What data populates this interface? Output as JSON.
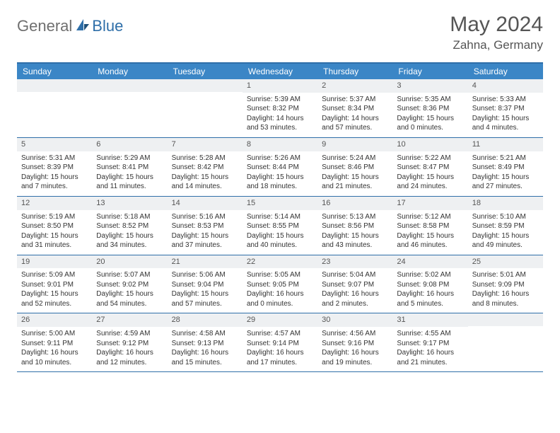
{
  "logo": {
    "part1": "General",
    "part2": "Blue"
  },
  "title": "May 2024",
  "location": "Zahna, Germany",
  "colors": {
    "header_bg": "#3b86c6",
    "header_border": "#2f6fa9",
    "daynum_bg": "#eef0f2",
    "text": "#333333",
    "logo_gray": "#6f6f6f",
    "logo_blue": "#2f6fa9"
  },
  "day_headers": [
    "Sunday",
    "Monday",
    "Tuesday",
    "Wednesday",
    "Thursday",
    "Friday",
    "Saturday"
  ],
  "weeks": [
    [
      {
        "empty": true
      },
      {
        "empty": true
      },
      {
        "empty": true
      },
      {
        "n": "1",
        "sr": "Sunrise: 5:39 AM",
        "ss": "Sunset: 8:32 PM",
        "d1": "Daylight: 14 hours",
        "d2": "and 53 minutes."
      },
      {
        "n": "2",
        "sr": "Sunrise: 5:37 AM",
        "ss": "Sunset: 8:34 PM",
        "d1": "Daylight: 14 hours",
        "d2": "and 57 minutes."
      },
      {
        "n": "3",
        "sr": "Sunrise: 5:35 AM",
        "ss": "Sunset: 8:36 PM",
        "d1": "Daylight: 15 hours",
        "d2": "and 0 minutes."
      },
      {
        "n": "4",
        "sr": "Sunrise: 5:33 AM",
        "ss": "Sunset: 8:37 PM",
        "d1": "Daylight: 15 hours",
        "d2": "and 4 minutes."
      }
    ],
    [
      {
        "n": "5",
        "sr": "Sunrise: 5:31 AM",
        "ss": "Sunset: 8:39 PM",
        "d1": "Daylight: 15 hours",
        "d2": "and 7 minutes."
      },
      {
        "n": "6",
        "sr": "Sunrise: 5:29 AM",
        "ss": "Sunset: 8:41 PM",
        "d1": "Daylight: 15 hours",
        "d2": "and 11 minutes."
      },
      {
        "n": "7",
        "sr": "Sunrise: 5:28 AM",
        "ss": "Sunset: 8:42 PM",
        "d1": "Daylight: 15 hours",
        "d2": "and 14 minutes."
      },
      {
        "n": "8",
        "sr": "Sunrise: 5:26 AM",
        "ss": "Sunset: 8:44 PM",
        "d1": "Daylight: 15 hours",
        "d2": "and 18 minutes."
      },
      {
        "n": "9",
        "sr": "Sunrise: 5:24 AM",
        "ss": "Sunset: 8:46 PM",
        "d1": "Daylight: 15 hours",
        "d2": "and 21 minutes."
      },
      {
        "n": "10",
        "sr": "Sunrise: 5:22 AM",
        "ss": "Sunset: 8:47 PM",
        "d1": "Daylight: 15 hours",
        "d2": "and 24 minutes."
      },
      {
        "n": "11",
        "sr": "Sunrise: 5:21 AM",
        "ss": "Sunset: 8:49 PM",
        "d1": "Daylight: 15 hours",
        "d2": "and 27 minutes."
      }
    ],
    [
      {
        "n": "12",
        "sr": "Sunrise: 5:19 AM",
        "ss": "Sunset: 8:50 PM",
        "d1": "Daylight: 15 hours",
        "d2": "and 31 minutes."
      },
      {
        "n": "13",
        "sr": "Sunrise: 5:18 AM",
        "ss": "Sunset: 8:52 PM",
        "d1": "Daylight: 15 hours",
        "d2": "and 34 minutes."
      },
      {
        "n": "14",
        "sr": "Sunrise: 5:16 AM",
        "ss": "Sunset: 8:53 PM",
        "d1": "Daylight: 15 hours",
        "d2": "and 37 minutes."
      },
      {
        "n": "15",
        "sr": "Sunrise: 5:14 AM",
        "ss": "Sunset: 8:55 PM",
        "d1": "Daylight: 15 hours",
        "d2": "and 40 minutes."
      },
      {
        "n": "16",
        "sr": "Sunrise: 5:13 AM",
        "ss": "Sunset: 8:56 PM",
        "d1": "Daylight: 15 hours",
        "d2": "and 43 minutes."
      },
      {
        "n": "17",
        "sr": "Sunrise: 5:12 AM",
        "ss": "Sunset: 8:58 PM",
        "d1": "Daylight: 15 hours",
        "d2": "and 46 minutes."
      },
      {
        "n": "18",
        "sr": "Sunrise: 5:10 AM",
        "ss": "Sunset: 8:59 PM",
        "d1": "Daylight: 15 hours",
        "d2": "and 49 minutes."
      }
    ],
    [
      {
        "n": "19",
        "sr": "Sunrise: 5:09 AM",
        "ss": "Sunset: 9:01 PM",
        "d1": "Daylight: 15 hours",
        "d2": "and 52 minutes."
      },
      {
        "n": "20",
        "sr": "Sunrise: 5:07 AM",
        "ss": "Sunset: 9:02 PM",
        "d1": "Daylight: 15 hours",
        "d2": "and 54 minutes."
      },
      {
        "n": "21",
        "sr": "Sunrise: 5:06 AM",
        "ss": "Sunset: 9:04 PM",
        "d1": "Daylight: 15 hours",
        "d2": "and 57 minutes."
      },
      {
        "n": "22",
        "sr": "Sunrise: 5:05 AM",
        "ss": "Sunset: 9:05 PM",
        "d1": "Daylight: 16 hours",
        "d2": "and 0 minutes."
      },
      {
        "n": "23",
        "sr": "Sunrise: 5:04 AM",
        "ss": "Sunset: 9:07 PM",
        "d1": "Daylight: 16 hours",
        "d2": "and 2 minutes."
      },
      {
        "n": "24",
        "sr": "Sunrise: 5:02 AM",
        "ss": "Sunset: 9:08 PM",
        "d1": "Daylight: 16 hours",
        "d2": "and 5 minutes."
      },
      {
        "n": "25",
        "sr": "Sunrise: 5:01 AM",
        "ss": "Sunset: 9:09 PM",
        "d1": "Daylight: 16 hours",
        "d2": "and 8 minutes."
      }
    ],
    [
      {
        "n": "26",
        "sr": "Sunrise: 5:00 AM",
        "ss": "Sunset: 9:11 PM",
        "d1": "Daylight: 16 hours",
        "d2": "and 10 minutes."
      },
      {
        "n": "27",
        "sr": "Sunrise: 4:59 AM",
        "ss": "Sunset: 9:12 PM",
        "d1": "Daylight: 16 hours",
        "d2": "and 12 minutes."
      },
      {
        "n": "28",
        "sr": "Sunrise: 4:58 AM",
        "ss": "Sunset: 9:13 PM",
        "d1": "Daylight: 16 hours",
        "d2": "and 15 minutes."
      },
      {
        "n": "29",
        "sr": "Sunrise: 4:57 AM",
        "ss": "Sunset: 9:14 PM",
        "d1": "Daylight: 16 hours",
        "d2": "and 17 minutes."
      },
      {
        "n": "30",
        "sr": "Sunrise: 4:56 AM",
        "ss": "Sunset: 9:16 PM",
        "d1": "Daylight: 16 hours",
        "d2": "and 19 minutes."
      },
      {
        "n": "31",
        "sr": "Sunrise: 4:55 AM",
        "ss": "Sunset: 9:17 PM",
        "d1": "Daylight: 16 hours",
        "d2": "and 21 minutes."
      },
      {
        "empty": true
      }
    ]
  ]
}
